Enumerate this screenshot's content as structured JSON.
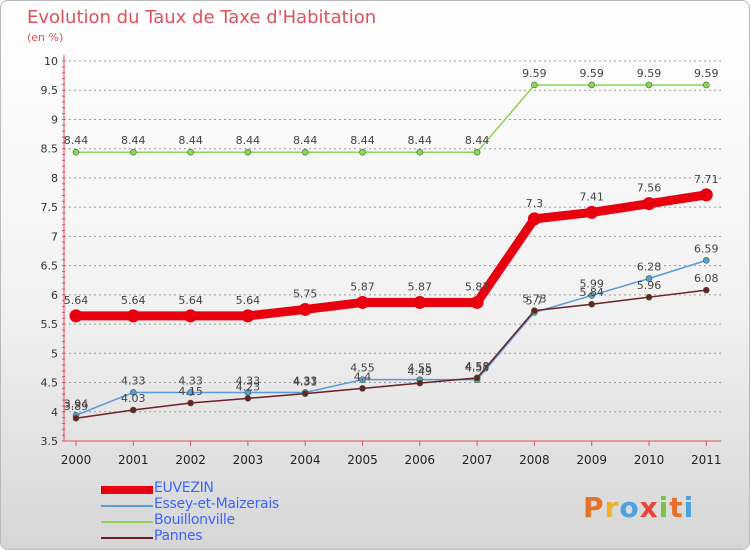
{
  "title": "Evolution du Taux de Taxe d'Habitation",
  "subtitle": "(en %)",
  "logo": {
    "text": "Proxiti",
    "colors": [
      "#e8712a",
      "#f0b228",
      "#4aa3df",
      "#e8443a",
      "#7cc04b",
      "#e8712a",
      "#4aa3df"
    ]
  },
  "colors": {
    "axis": "#e0505a",
    "grid": "#9a9a9a",
    "legend_text": "#3e64ff"
  },
  "chart_data": {
    "type": "line",
    "title": "Evolution du Taux de Taxe d'Habitation",
    "ylabel": "(en %)",
    "x": [
      "2000",
      "2001",
      "2002",
      "2003",
      "2004",
      "2005",
      "2006",
      "2007",
      "2008",
      "2009",
      "2010",
      "2011"
    ],
    "ylim": [
      3.5,
      10
    ],
    "yticks": [
      "3.5",
      "4",
      "4.5",
      "5",
      "5.5",
      "6",
      "6.5",
      "7",
      "7.5",
      "8",
      "8.5",
      "9",
      "9.5",
      "10"
    ],
    "grid": "horizontal dashed",
    "legend_position": "bottom-left",
    "series": [
      {
        "name": "EUVEZIN",
        "color": "#e8000f",
        "values": [
          5.64,
          5.64,
          5.64,
          5.64,
          5.75,
          5.87,
          5.87,
          5.87,
          7.3,
          7.41,
          7.56,
          7.71
        ]
      },
      {
        "name": "Essey-et-Maizerais",
        "color": "#5a9ad8",
        "values": [
          3.94,
          4.33,
          4.33,
          4.33,
          4.33,
          4.55,
          4.55,
          4.55,
          5.7,
          5.99,
          6.28,
          6.59
        ]
      },
      {
        "name": "Bouillonville",
        "color": "#8cd45a",
        "values": [
          8.44,
          8.44,
          8.44,
          8.44,
          8.44,
          8.44,
          8.44,
          8.44,
          9.59,
          9.59,
          9.59,
          9.59
        ]
      },
      {
        "name": "Pannes",
        "color": "#6b1f26",
        "values": [
          3.89,
          4.03,
          4.15,
          4.23,
          4.31,
          4.4,
          4.49,
          4.58,
          5.73,
          5.84,
          5.96,
          6.08
        ]
      }
    ]
  }
}
